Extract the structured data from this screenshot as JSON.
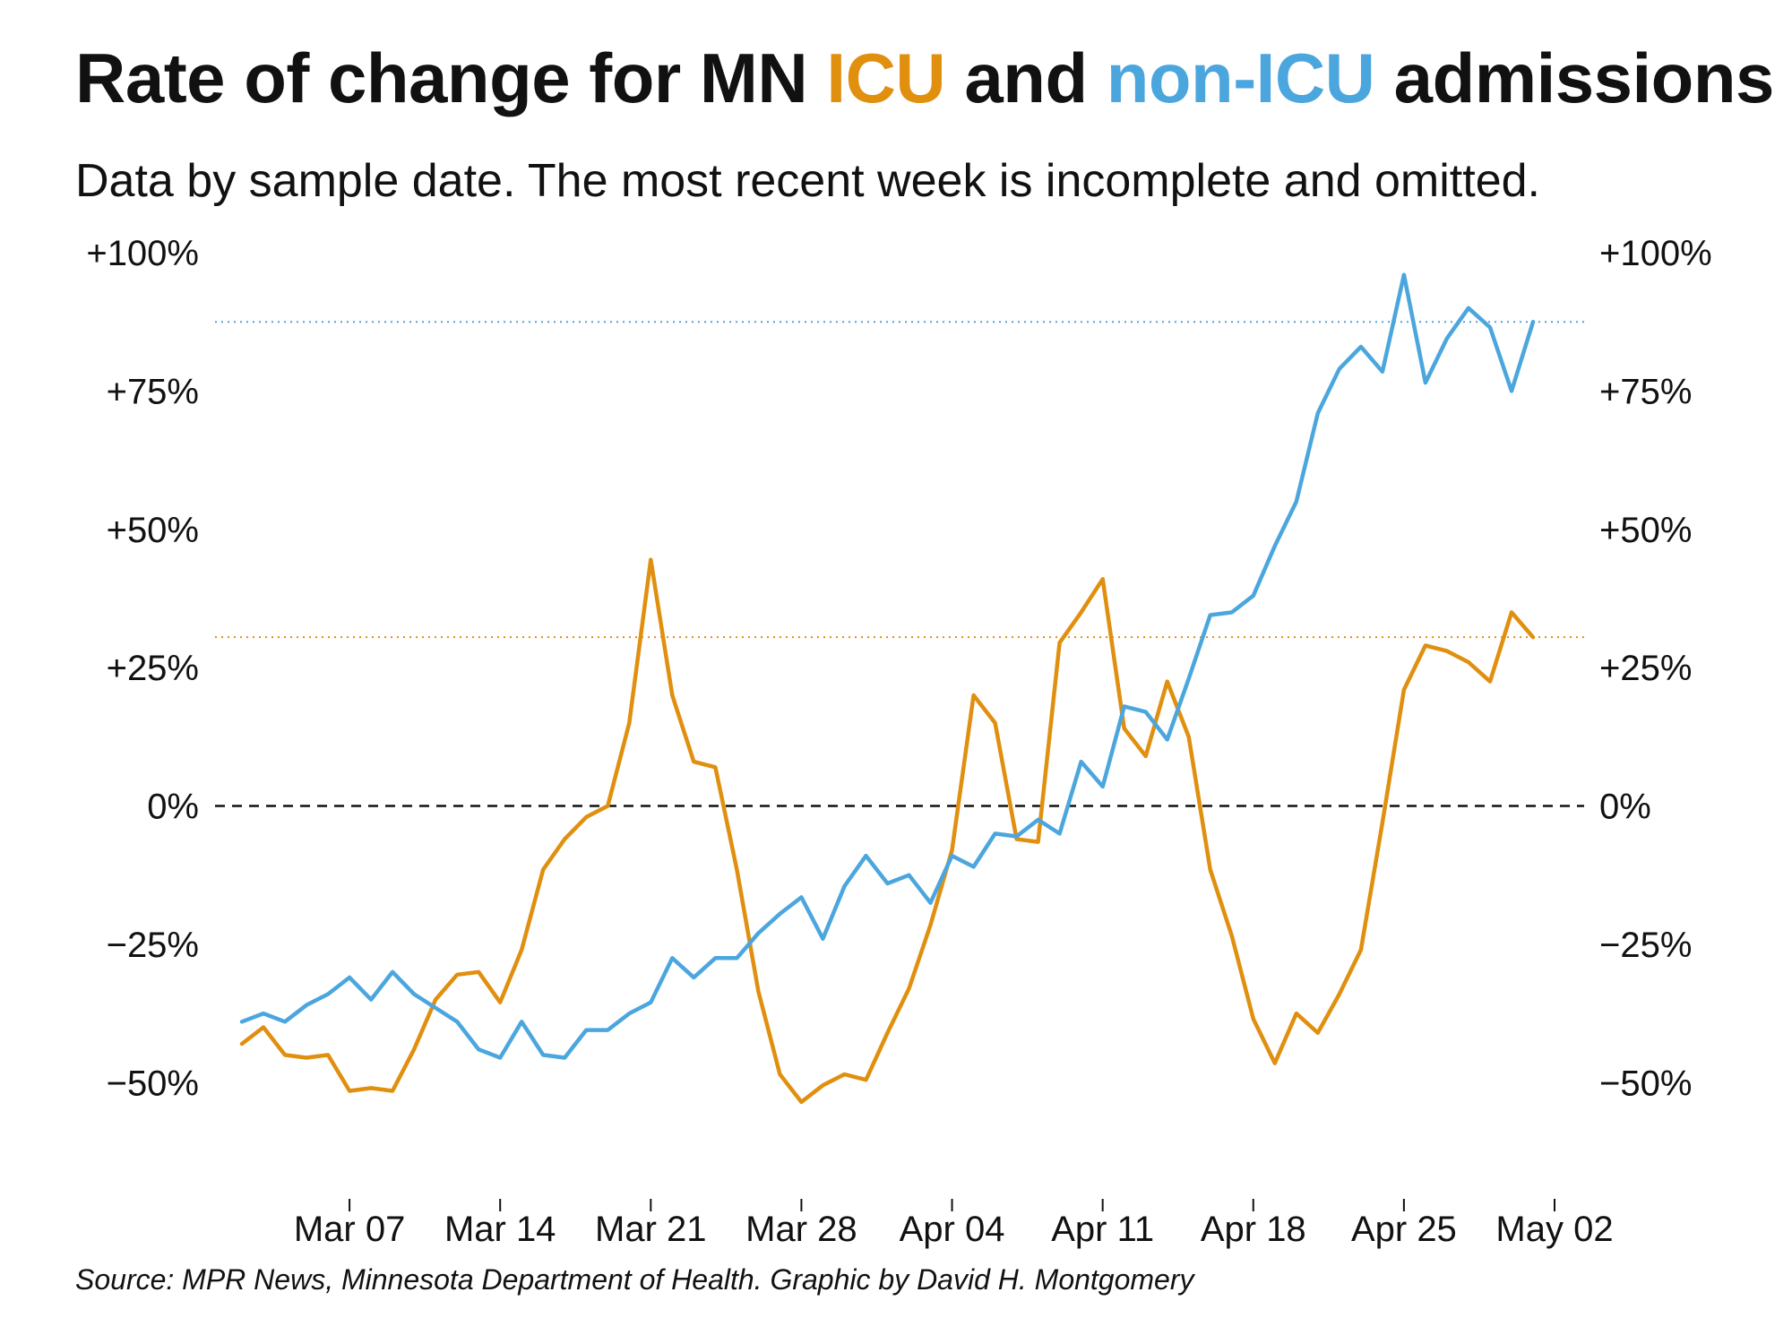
{
  "title": {
    "prefix": "Rate of change for MN ",
    "icu": "ICU",
    "middle": " and ",
    "non_icu": "non-ICU",
    "suffix": " admissions"
  },
  "subtitle": "Data by sample date. The most recent week is incomplete and omitted.",
  "source": "Source: MPR News, Minnesota Department of Health. Graphic by David H. Montgomery",
  "colors": {
    "icu": "#E08F0F",
    "non_icu": "#4BA6DE",
    "zero_line": "#111111"
  },
  "chart_data": {
    "type": "line",
    "x_start": "2021-03-02",
    "x_end": "2021-05-02",
    "ylim": [
      -60,
      100
    ],
    "y_ticks": [
      {
        "value": 100,
        "label": "+100%"
      },
      {
        "value": 75,
        "label": "+75%"
      },
      {
        "value": 50,
        "label": "+50%"
      },
      {
        "value": 25,
        "label": "+25%"
      },
      {
        "value": 0,
        "label": "0%"
      },
      {
        "value": -25,
        "label": "−25%"
      },
      {
        "value": -50,
        "label": "−50%"
      }
    ],
    "x_ticks": [
      {
        "date": "2021-03-07",
        "label": "Mar 07"
      },
      {
        "date": "2021-03-14",
        "label": "Mar 14"
      },
      {
        "date": "2021-03-21",
        "label": "Mar 21"
      },
      {
        "date": "2021-03-28",
        "label": "Mar 28"
      },
      {
        "date": "2021-04-04",
        "label": "Apr 04"
      },
      {
        "date": "2021-04-11",
        "label": "Apr 11"
      },
      {
        "date": "2021-04-18",
        "label": "Apr 18"
      },
      {
        "date": "2021-04-25",
        "label": "Apr 25"
      },
      {
        "date": "2021-05-02",
        "label": "May 02"
      }
    ],
    "zero_line": {
      "value": 0,
      "style": "dashed"
    },
    "series": [
      {
        "name": "ICU",
        "color": "#E08F0F",
        "reference_line": 30.5,
        "values": [
          -43,
          -40,
          -45,
          -45.5,
          -45,
          -51.5,
          -51,
          -51.5,
          -44,
          -35,
          -30.5,
          -30,
          -35.5,
          -26,
          -11.5,
          -6,
          -2,
          0,
          15,
          44.5,
          20,
          8,
          7,
          -11.5,
          -33.5,
          -48.5,
          -53.5,
          -50.5,
          -48.5,
          -49.5,
          -41,
          -33,
          -21.5,
          -8,
          20,
          15,
          -6,
          -6.5,
          29.5,
          35,
          41,
          14,
          9,
          22.5,
          12.5,
          -11.5,
          -23.5,
          -38.5,
          -46.5,
          -37.5,
          -41,
          -34,
          -26,
          -3,
          21,
          29,
          28,
          26,
          22.5,
          35,
          30.5
        ]
      },
      {
        "name": "non-ICU",
        "color": "#4BA6DE",
        "reference_line": 87.5,
        "values": [
          -39,
          -37.5,
          -39,
          -36,
          -34,
          -31,
          -35,
          -30,
          -34,
          -36.5,
          -39,
          -44,
          -45.5,
          -39,
          -45,
          -45.5,
          -40.5,
          -40.5,
          -37.5,
          -35.5,
          -27.5,
          -31,
          -27.5,
          -27.5,
          -23,
          -19.5,
          -16.5,
          -24,
          -14.5,
          -9,
          -14,
          -12.5,
          -17.5,
          -9,
          -11,
          -5,
          -5.5,
          -2.5,
          -5,
          8,
          3.5,
          18,
          17,
          12,
          23,
          34.5,
          35,
          38,
          47,
          55,
          71,
          79,
          83,
          78.5,
          96,
          76.5,
          84.5,
          90,
          86.5,
          75,
          87.5
        ]
      }
    ]
  }
}
